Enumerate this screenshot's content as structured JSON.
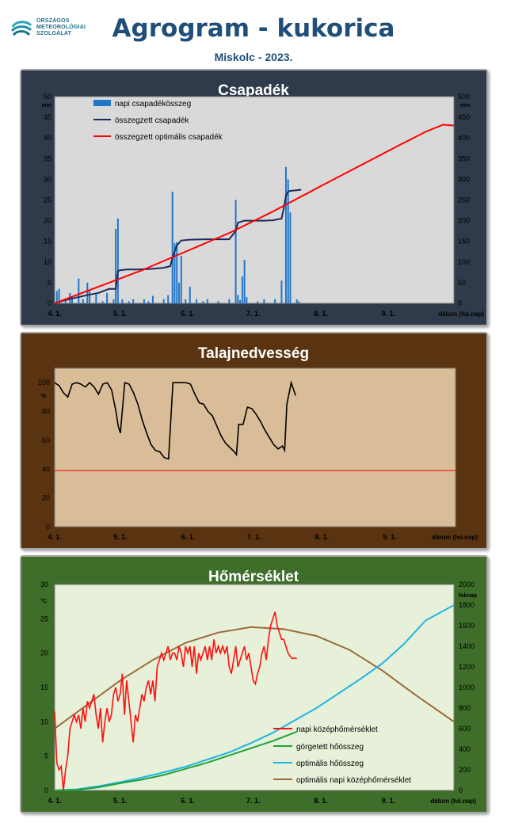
{
  "header": {
    "org_line1": "ORSZÁGOS",
    "org_line2": "METEOROLÓGIAI",
    "org_line3": "SZOLGÁLAT",
    "title": "Agrogram - kukorica",
    "subtitle": "Miskolc - 2023."
  },
  "colors": {
    "panel1_bg": "#2f3a4a",
    "panel2_bg": "#5a3410",
    "panel3_bg": "#3e6e2a",
    "plot1_bg": "#d9d9d9",
    "plot2_bg": "#d9bd98",
    "plot3_bg": "#e7f0d8",
    "bar": "#1f77c9",
    "cum_precip": "#1f2a5a",
    "opt_precip": "#ff0000",
    "soil": "#000000",
    "soil_threshold": "#ff0000",
    "daily_temp": "#ff1010",
    "gdd": "#1ea33a",
    "opt_gdd": "#1fb4e6",
    "opt_temp": "#9b6a3a"
  },
  "chart_data": [
    {
      "type": "bar",
      "title": "Csapadék",
      "xlabel": "dátum (hó.nap)",
      "ylabel": "mm",
      "y2label": "mm",
      "x_ticks": [
        "4. 1.",
        "5. 1.",
        "6. 1.",
        "7. 1.",
        "8. 1.",
        "9. 1."
      ],
      "xlim": [
        0,
        183
      ],
      "ylim": [
        0,
        50
      ],
      "y2lim": [
        0,
        500
      ],
      "y_ticks": [
        "0",
        "5",
        "10",
        "15",
        "20",
        "25",
        "30",
        "35",
        "40",
        "45",
        "50"
      ],
      "y2_ticks": [
        "0",
        "50",
        "100",
        "150",
        "200",
        "250",
        "300",
        "350",
        "400",
        "450",
        "500"
      ],
      "legend": [
        "napi csapadékösszeg",
        "összegzett csapadék",
        "összegzett optimális csapadék"
      ],
      "bars": [
        [
          1,
          3
        ],
        [
          2,
          3.5
        ],
        [
          5,
          1
        ],
        [
          7,
          2.5
        ],
        [
          8,
          1.5
        ],
        [
          11,
          6
        ],
        [
          13,
          1
        ],
        [
          15,
          5
        ],
        [
          16,
          3
        ],
        [
          19,
          2.5
        ],
        [
          22,
          0.5
        ],
        [
          24,
          2.5
        ],
        [
          27,
          1
        ],
        [
          28,
          18
        ],
        [
          29,
          20.5
        ],
        [
          31,
          1
        ],
        [
          34,
          0.5
        ],
        [
          36,
          1
        ],
        [
          41,
          1
        ],
        [
          43,
          0.5
        ],
        [
          45,
          1.8
        ],
        [
          50,
          1
        ],
        [
          52,
          2
        ],
        [
          54,
          27
        ],
        [
          55,
          14.5
        ],
        [
          56,
          14.8
        ],
        [
          57,
          5
        ],
        [
          58,
          11.5
        ],
        [
          60,
          1
        ],
        [
          62,
          4
        ],
        [
          65,
          1
        ],
        [
          68,
          0.5
        ],
        [
          70,
          1
        ],
        [
          75,
          0.5
        ],
        [
          80,
          1
        ],
        [
          83,
          25
        ],
        [
          84,
          2
        ],
        [
          85,
          0.8
        ],
        [
          86,
          6.5
        ],
        [
          87,
          10.5
        ],
        [
          88,
          1.5
        ],
        [
          93,
          0.5
        ],
        [
          96,
          1
        ],
        [
          101,
          1
        ],
        [
          104,
          5.5
        ],
        [
          106,
          33
        ],
        [
          107,
          30
        ],
        [
          108,
          22
        ],
        [
          111,
          1
        ],
        [
          112,
          0.5
        ]
      ],
      "series": [
        {
          "name": "összegzett csapadék",
          "axis": "right",
          "x": [
            0,
            5,
            10,
            15,
            20,
            25,
            28,
            29,
            30,
            33,
            38,
            44,
            50,
            53,
            54,
            56,
            58,
            62,
            70,
            80,
            83,
            84,
            87,
            90,
            96,
            100,
            104,
            105,
            106,
            107,
            108,
            110,
            113
          ],
          "y": [
            0,
            8,
            14,
            20,
            25,
            35,
            35,
            78,
            80,
            82,
            82,
            83,
            86,
            90,
            110,
            140,
            152,
            154,
            155,
            155,
            175,
            195,
            200,
            200,
            200,
            201,
            205,
            230,
            260,
            270,
            272,
            273,
            275
          ]
        },
        {
          "name": "összegzett optimális csapadék",
          "axis": "right",
          "x": [
            0,
            20,
            40,
            60,
            80,
            100,
            120,
            140,
            160,
            170,
            178,
            183
          ],
          "y": [
            0,
            40,
            80,
            125,
            170,
            222,
            278,
            333,
            388,
            415,
            432,
            430
          ]
        }
      ]
    },
    {
      "type": "line",
      "title": "Talajnedvesség",
      "xlabel": "dátum (hó.nap)",
      "ylabel": "%",
      "x_ticks": [
        "4. 1.",
        "5. 1.",
        "6. 1.",
        "7. 1.",
        "8. 1.",
        "9. 1."
      ],
      "xlim": [
        0,
        183
      ],
      "ylim": [
        0,
        110
      ],
      "y_ticks": [
        "0",
        "20",
        "40",
        "60",
        "80",
        "100"
      ],
      "threshold": 39,
      "series": [
        {
          "name": "talajnedvesség",
          "x": [
            0,
            2,
            4,
            6,
            8,
            10,
            12,
            14,
            16,
            18,
            20,
            22,
            24,
            26,
            28,
            29,
            30,
            32,
            34,
            36,
            38,
            40,
            42,
            44,
            46,
            48,
            50,
            52,
            54,
            56,
            58,
            60,
            62,
            64,
            66,
            68,
            70,
            72,
            74,
            76,
            78,
            80,
            82,
            83,
            84,
            86,
            88,
            90,
            92,
            94,
            96,
            98,
            100,
            102,
            104,
            105,
            106,
            108,
            110
          ],
          "y": [
            100,
            98,
            93,
            90,
            99,
            100,
            99,
            97,
            100,
            97,
            92,
            99,
            100,
            95,
            80,
            70,
            65,
            100,
            99,
            93,
            85,
            74,
            65,
            57,
            53,
            52,
            48,
            47,
            100,
            100,
            100,
            100,
            99,
            92,
            86,
            85,
            80,
            77,
            70,
            63,
            58,
            55,
            52,
            50,
            71,
            71,
            83,
            82,
            78,
            73,
            67,
            62,
            57,
            54,
            56,
            53,
            85,
            100,
            91
          ]
        }
      ]
    },
    {
      "type": "line",
      "title": "Hőmérséklet",
      "xlabel": "dátum (hó.nap)",
      "ylabel": "°C",
      "y2label": "foknap",
      "x_ticks": [
        "4. 1.",
        "5. 1.",
        "6. 1.",
        "7. 1.",
        "8. 1.",
        "9. 1."
      ],
      "xlim": [
        0,
        183
      ],
      "ylim": [
        0,
        30
      ],
      "y2lim": [
        0,
        2000
      ],
      "y_ticks": [
        "0",
        "5",
        "10",
        "15",
        "20",
        "25",
        "30"
      ],
      "y2_ticks": [
        "0",
        "200",
        "400",
        "600",
        "800",
        "1000",
        "1200",
        "1400",
        "1600",
        "1800",
        "2000"
      ],
      "legend": [
        "napi középhőmérséklet",
        "görgetett hőösszeg",
        "optimális hőösszeg",
        "optimális napi középhőmérséklet"
      ],
      "series": [
        {
          "name": "napi középhőmérséklet",
          "axis": "left",
          "x": [
            0,
            1,
            2,
            3,
            4,
            5,
            6,
            7,
            8,
            9,
            10,
            11,
            12,
            13,
            14,
            15,
            16,
            17,
            18,
            19,
            20,
            21,
            22,
            23,
            24,
            25,
            26,
            27,
            28,
            29,
            30,
            31,
            32,
            33,
            34,
            35,
            36,
            37,
            38,
            39,
            40,
            41,
            42,
            43,
            44,
            45,
            46,
            47,
            48,
            49,
            50,
            51,
            52,
            53,
            54,
            55,
            56,
            57,
            58,
            59,
            60,
            61,
            62,
            63,
            64,
            65,
            66,
            67,
            68,
            69,
            70,
            71,
            72,
            73,
            74,
            75,
            76,
            77,
            78,
            79,
            80,
            81,
            82,
            83,
            84,
            85,
            86,
            87,
            88,
            89,
            90,
            91,
            92,
            93,
            94,
            95,
            96,
            97,
            98,
            99,
            100,
            101,
            102,
            103,
            104,
            105,
            106,
            107,
            108,
            109,
            110,
            111
          ],
          "y": [
            11.5,
            4,
            3,
            3.5,
            0,
            3,
            5,
            9,
            10,
            11,
            10,
            11,
            9,
            12,
            10,
            13,
            12,
            13,
            14,
            11,
            9,
            12,
            7,
            10,
            12,
            10,
            11,
            14,
            15,
            13,
            14,
            17,
            11,
            16,
            13,
            10,
            7,
            11,
            10,
            12,
            14,
            13,
            15,
            16,
            14,
            16,
            13,
            18,
            19,
            20,
            19,
            20,
            21,
            19,
            20,
            20,
            19,
            21,
            20,
            18,
            21,
            20,
            21,
            18,
            21,
            17,
            20,
            19,
            20,
            21,
            19,
            21,
            19,
            22,
            20,
            21,
            20,
            21,
            20,
            21,
            18,
            17,
            19,
            21,
            18,
            19,
            20,
            21,
            19,
            20,
            18,
            16,
            15.5,
            17,
            18,
            20,
            21,
            19,
            22,
            24,
            25,
            26,
            24,
            23,
            22,
            22,
            21,
            20,
            19.5,
            19.2,
            19.3,
            19.2
          ]
        },
        {
          "name": "görgetett hőösszeg",
          "axis": "right",
          "x": [
            0,
            10,
            20,
            30,
            40,
            50,
            60,
            70,
            80,
            90,
            100,
            111
          ],
          "y": [
            0,
            5,
            30,
            70,
            105,
            150,
            210,
            270,
            340,
            410,
            480,
            570
          ]
        },
        {
          "name": "optimális hőösszeg",
          "axis": "right",
          "x": [
            0,
            10,
            20,
            30,
            40,
            50,
            60,
            70,
            80,
            90,
            100,
            110,
            120,
            130,
            140,
            150,
            160,
            170,
            183
          ],
          "y": [
            0,
            10,
            40,
            80,
            125,
            175,
            230,
            300,
            370,
            460,
            560,
            680,
            800,
            940,
            1080,
            1230,
            1420,
            1650,
            1800
          ]
        },
        {
          "name": "optimális napi középhőmérséklet",
          "axis": "left",
          "x": [
            0,
            15,
            30,
            45,
            60,
            75,
            90,
            105,
            120,
            135,
            150,
            165,
            183
          ],
          "y": [
            9,
            12.5,
            16,
            19,
            21.5,
            23,
            23.8,
            23.5,
            22.5,
            20.5,
            17.5,
            14,
            10
          ]
        }
      ]
    }
  ]
}
